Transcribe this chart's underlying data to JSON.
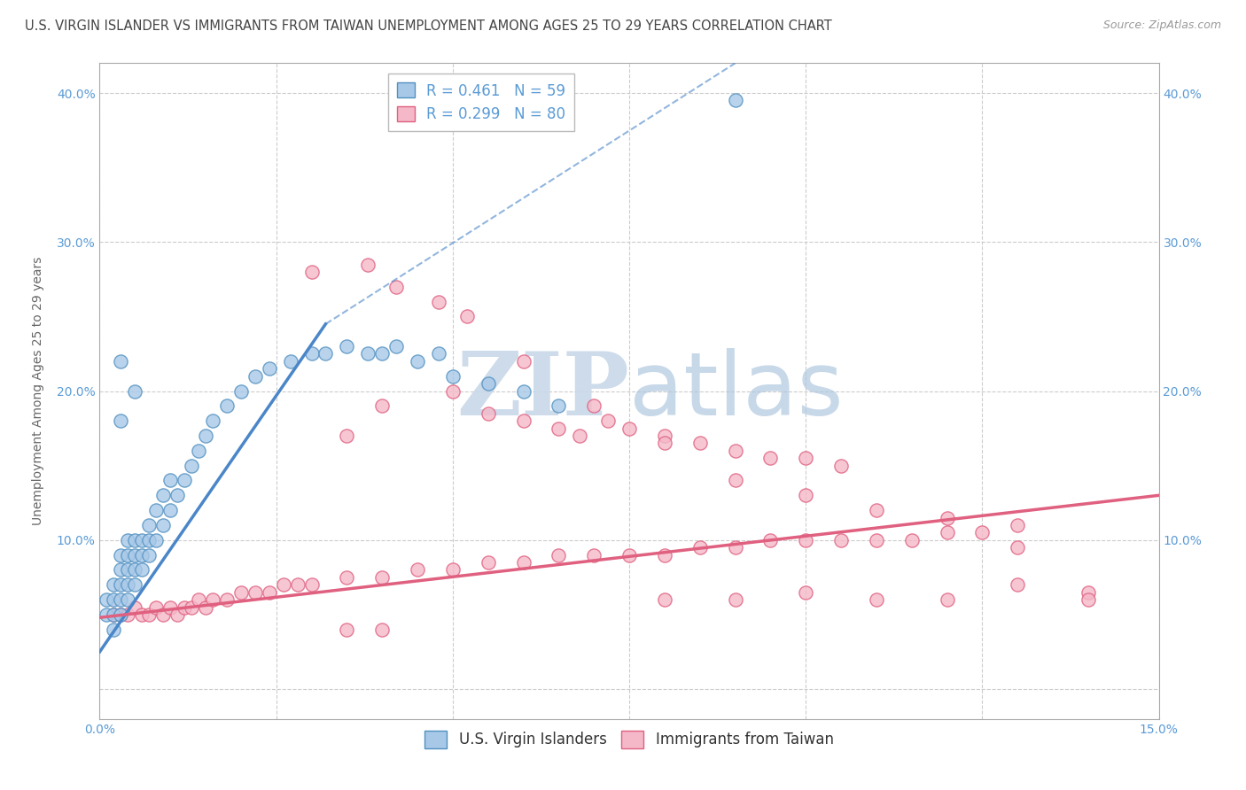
{
  "title": "U.S. VIRGIN ISLANDER VS IMMIGRANTS FROM TAIWAN UNEMPLOYMENT AMONG AGES 25 TO 29 YEARS CORRELATION CHART",
  "source": "Source: ZipAtlas.com",
  "ylabel": "Unemployment Among Ages 25 to 29 years",
  "xlim": [
    0.0,
    0.15
  ],
  "ylim": [
    -0.02,
    0.42
  ],
  "xticks": [
    0.0,
    0.025,
    0.05,
    0.075,
    0.1,
    0.125,
    0.15
  ],
  "xtick_labels": [
    "0.0%",
    "",
    "",
    "",
    "",
    "",
    "15.0%"
  ],
  "yticks": [
    0.0,
    0.1,
    0.2,
    0.3,
    0.4
  ],
  "ytick_labels": [
    "",
    "10.0%",
    "20.0%",
    "30.0%",
    "40.0%"
  ],
  "blue_color": "#a8c8e8",
  "pink_color": "#f4b8c8",
  "blue_edge": "#5090c0",
  "pink_edge": "#e06080",
  "trend_blue_color": "#4a86c8",
  "trend_pink_color": "#e06080",
  "legend_R_blue": "R = 0.461",
  "legend_N_blue": "N = 59",
  "legend_R_pink": "R = 0.299",
  "legend_N_pink": "N = 80",
  "legend_label_blue": "U.S. Virgin Islanders",
  "legend_label_pink": "Immigrants from Taiwan",
  "watermark_zip": "ZIP",
  "watermark_atlas": "atlas",
  "background_color": "#ffffff",
  "grid_color": "#cccccc",
  "title_color": "#444444",
  "axis_label_color": "#666666",
  "tick_color": "#5b9bd5",
  "watermark_zip_color": "#c8d8e8",
  "watermark_atlas_color": "#b0c8e0",
  "title_fontsize": 10.5,
  "label_fontsize": 10,
  "tick_fontsize": 10,
  "legend_fontsize": 12,
  "blue_scatter_x": [
    0.001,
    0.001,
    0.002,
    0.002,
    0.002,
    0.002,
    0.003,
    0.003,
    0.003,
    0.003,
    0.003,
    0.004,
    0.004,
    0.004,
    0.004,
    0.004,
    0.005,
    0.005,
    0.005,
    0.005,
    0.006,
    0.006,
    0.006,
    0.007,
    0.007,
    0.007,
    0.008,
    0.008,
    0.009,
    0.009,
    0.01,
    0.01,
    0.011,
    0.012,
    0.013,
    0.014,
    0.015,
    0.016,
    0.018,
    0.02,
    0.022,
    0.024,
    0.027,
    0.03,
    0.032,
    0.035,
    0.038,
    0.04,
    0.042,
    0.045,
    0.048,
    0.05,
    0.055,
    0.06,
    0.065,
    0.005,
    0.003,
    0.003,
    0.09
  ],
  "blue_scatter_y": [
    0.05,
    0.06,
    0.04,
    0.05,
    0.06,
    0.07,
    0.05,
    0.06,
    0.07,
    0.08,
    0.09,
    0.06,
    0.07,
    0.08,
    0.09,
    0.1,
    0.07,
    0.08,
    0.09,
    0.1,
    0.08,
    0.09,
    0.1,
    0.09,
    0.1,
    0.11,
    0.1,
    0.12,
    0.11,
    0.13,
    0.12,
    0.14,
    0.13,
    0.14,
    0.15,
    0.16,
    0.17,
    0.18,
    0.19,
    0.2,
    0.21,
    0.215,
    0.22,
    0.225,
    0.225,
    0.23,
    0.225,
    0.225,
    0.23,
    0.22,
    0.225,
    0.21,
    0.205,
    0.2,
    0.19,
    0.2,
    0.18,
    0.22,
    0.395
  ],
  "pink_scatter_x": [
    0.002,
    0.003,
    0.004,
    0.005,
    0.006,
    0.007,
    0.008,
    0.009,
    0.01,
    0.011,
    0.012,
    0.013,
    0.014,
    0.015,
    0.016,
    0.018,
    0.02,
    0.022,
    0.024,
    0.026,
    0.028,
    0.03,
    0.035,
    0.04,
    0.045,
    0.05,
    0.055,
    0.06,
    0.065,
    0.07,
    0.075,
    0.08,
    0.085,
    0.09,
    0.095,
    0.1,
    0.105,
    0.11,
    0.115,
    0.12,
    0.125,
    0.13,
    0.035,
    0.04,
    0.05,
    0.055,
    0.06,
    0.065,
    0.068,
    0.072,
    0.075,
    0.08,
    0.085,
    0.09,
    0.095,
    0.1,
    0.105,
    0.03,
    0.038,
    0.042,
    0.048,
    0.052,
    0.06,
    0.07,
    0.08,
    0.09,
    0.1,
    0.11,
    0.12,
    0.13,
    0.14,
    0.14,
    0.13,
    0.12,
    0.11,
    0.1,
    0.09,
    0.08,
    0.035,
    0.04
  ],
  "pink_scatter_y": [
    0.05,
    0.05,
    0.05,
    0.055,
    0.05,
    0.05,
    0.055,
    0.05,
    0.055,
    0.05,
    0.055,
    0.055,
    0.06,
    0.055,
    0.06,
    0.06,
    0.065,
    0.065,
    0.065,
    0.07,
    0.07,
    0.07,
    0.075,
    0.075,
    0.08,
    0.08,
    0.085,
    0.085,
    0.09,
    0.09,
    0.09,
    0.09,
    0.095,
    0.095,
    0.1,
    0.1,
    0.1,
    0.1,
    0.1,
    0.105,
    0.105,
    0.11,
    0.17,
    0.19,
    0.2,
    0.185,
    0.18,
    0.175,
    0.17,
    0.18,
    0.175,
    0.17,
    0.165,
    0.16,
    0.155,
    0.155,
    0.15,
    0.28,
    0.285,
    0.27,
    0.26,
    0.25,
    0.22,
    0.19,
    0.165,
    0.14,
    0.13,
    0.12,
    0.115,
    0.095,
    0.065,
    0.06,
    0.07,
    0.06,
    0.06,
    0.065,
    0.06,
    0.06,
    0.04,
    0.04
  ],
  "trend_blue_x0": 0.0,
  "trend_blue_y0": 0.025,
  "trend_blue_x1": 0.032,
  "trend_blue_y1": 0.245,
  "trend_blue_dash_x0": 0.032,
  "trend_blue_dash_y0": 0.245,
  "trend_blue_dash_x1": 0.09,
  "trend_blue_dash_y1": 0.42,
  "trend_pink_x0": 0.0,
  "trend_pink_y0": 0.048,
  "trend_pink_x1": 0.15,
  "trend_pink_y1": 0.13
}
